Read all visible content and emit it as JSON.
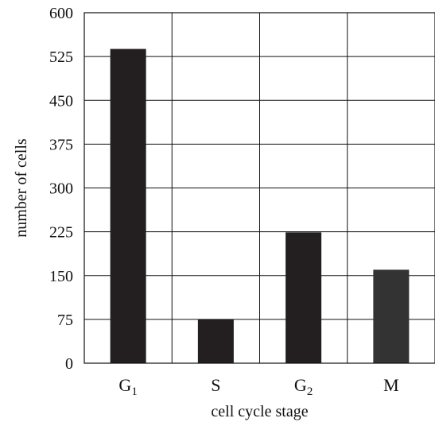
{
  "chart_data": {
    "type": "bar",
    "categories": [
      {
        "base": "G",
        "sub": "1"
      },
      {
        "base": "S",
        "sub": ""
      },
      {
        "base": "G",
        "sub": "2"
      },
      {
        "base": "M",
        "sub": ""
      }
    ],
    "values": [
      538,
      75,
      224,
      160
    ],
    "bar_colors": [
      "#231f20",
      "#231f20",
      "#231f20",
      "#333333"
    ],
    "xlabel": "cell cycle stage",
    "ylabel": "number of cells",
    "ylim": [
      0,
      600
    ],
    "yticks": [
      "0",
      "75",
      "150",
      "225",
      "300",
      "375",
      "450",
      "525",
      "600"
    ],
    "grid": true
  }
}
